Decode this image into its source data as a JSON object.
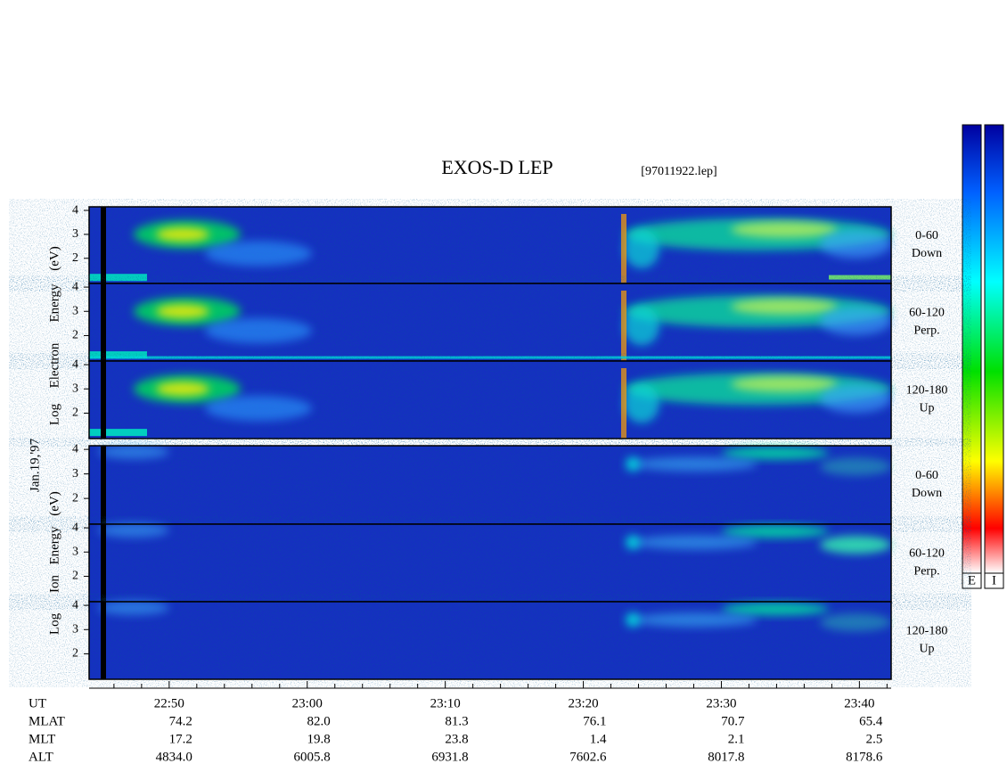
{
  "title": "EXOS-D LEP",
  "file": "[97011922.lep]",
  "date": "Jan.19,'97",
  "axis_label_groups": [
    {
      "words": [
        "Log",
        "Electron",
        "Energy",
        "(eV)"
      ]
    },
    {
      "words": [
        "Log",
        "Ion",
        "Energy",
        "(eV)"
      ]
    }
  ],
  "chart_data": [
    {
      "type": "spectrogram",
      "species": "electron",
      "pitch_angle": "0-60",
      "direction": "Down",
      "ylim": [
        0.95,
        4.15
      ],
      "yticks": [
        2,
        3,
        4
      ]
    },
    {
      "type": "spectrogram",
      "species": "electron",
      "pitch_angle": "60-120",
      "direction": "Perp.",
      "ylim": [
        0.95,
        4.15
      ],
      "yticks": [
        2,
        3,
        4
      ]
    },
    {
      "type": "spectrogram",
      "species": "electron",
      "pitch_angle": "120-180",
      "direction": "Up",
      "ylim": [
        0.95,
        4.15
      ],
      "yticks": [
        2,
        3,
        4
      ]
    },
    {
      "type": "spectrogram",
      "species": "ion",
      "pitch_angle": "0-60",
      "direction": "Down",
      "ylim": [
        0.95,
        4.15
      ],
      "yticks": [
        2,
        3,
        4
      ]
    },
    {
      "type": "spectrogram",
      "species": "ion",
      "pitch_angle": "60-120",
      "direction": "Perp.",
      "ylim": [
        0.95,
        4.15
      ],
      "yticks": [
        2,
        3,
        4
      ]
    },
    {
      "type": "spectrogram",
      "species": "ion",
      "pitch_angle": "120-180",
      "direction": "Up",
      "ylim": [
        0.95,
        4.15
      ],
      "yticks": [
        2,
        3,
        4
      ]
    }
  ],
  "time_axis": {
    "label": "UT",
    "xlim": [
      44.2,
      102.3
    ],
    "xticks": [
      {
        "value": 50,
        "label": "22:50"
      },
      {
        "value": 60,
        "label": "23:00"
      },
      {
        "value": 70,
        "label": "23:10"
      },
      {
        "value": 80,
        "label": "23:20"
      },
      {
        "value": 90,
        "label": "23:30"
      },
      {
        "value": 100,
        "label": "23:40"
      }
    ],
    "minor_ticks": [
      46,
      48,
      52,
      54,
      56,
      58,
      62,
      64,
      66,
      68,
      72,
      74,
      76,
      78,
      82,
      84,
      86,
      88,
      92,
      94,
      96,
      98,
      102
    ]
  },
  "ephemeris": [
    {
      "label": "MLAT",
      "values": [
        "74.2",
        "82.0",
        "81.3",
        "76.1",
        "70.7",
        "65.4"
      ]
    },
    {
      "label": "MLT",
      "values": [
        "17.2",
        "19.8",
        "23.8",
        "1.4",
        "2.1",
        "2.5"
      ]
    },
    {
      "label": "ALT",
      "values": [
        "4834.0",
        "6005.8",
        "6931.8",
        "7602.6",
        "8017.8",
        "8178.6"
      ]
    }
  ],
  "colorscale": [
    "#ffffff",
    "#ff0000",
    "#ffff00",
    "#00e000",
    "#00ffff",
    "#0060ff",
    "#0000a0"
  ],
  "colorbars": [
    {
      "label": "E"
    },
    {
      "label": "I"
    }
  ]
}
